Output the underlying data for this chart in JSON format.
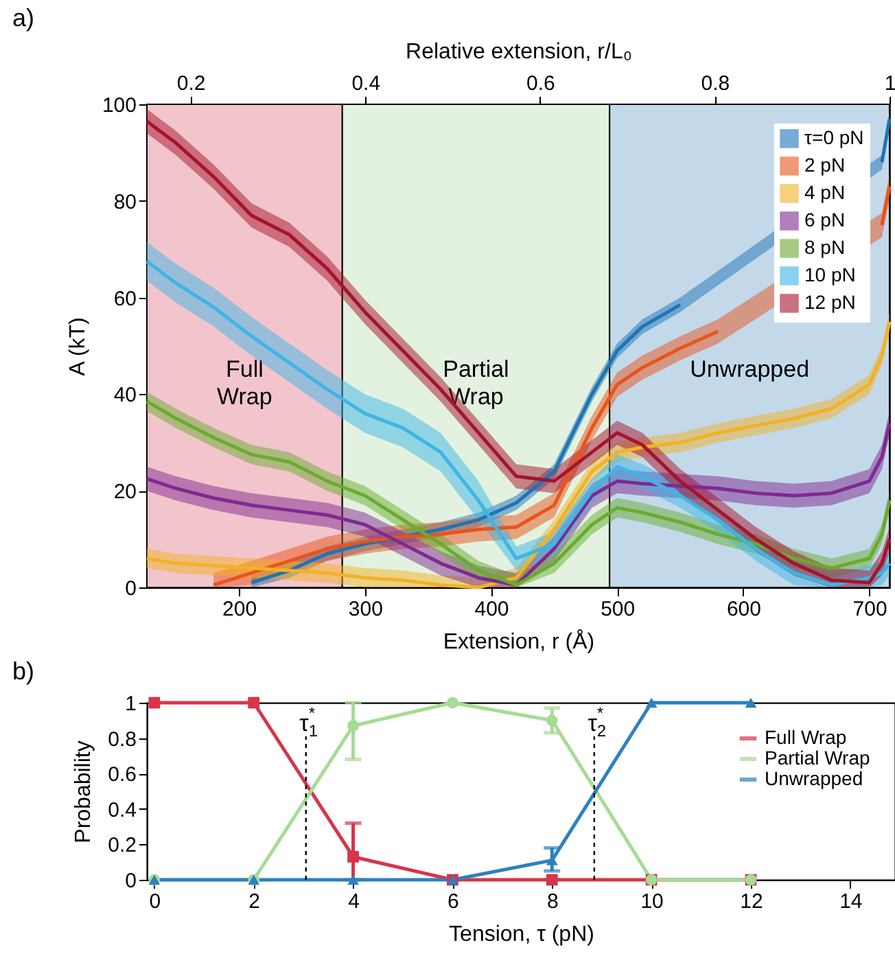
{
  "chart_data": [
    {
      "type": "line",
      "x2label": "Relative extension, r/L₀",
      "xlabel": "Extension, r (Å)",
      "ylabel": "A (kT)",
      "annotations": [
        "a)"
      ],
      "xlim": [
        127,
        716
      ],
      "xticks": [
        200,
        300,
        400,
        500,
        600,
        700
      ],
      "ylim": [
        0,
        100
      ],
      "yticks": [
        0,
        20,
        40,
        60,
        80,
        100
      ],
      "x2lim": [
        0.15,
        1
      ],
      "x2ticks": [
        0.2,
        0.4,
        0.6,
        0.8,
        1
      ],
      "legend": "top right",
      "grid": false,
      "bands": [
        {
          "axis": "x",
          "from": 127,
          "to": 282,
          "label": "Full Wrap",
          "color": "#f2c5cc"
        },
        {
          "axis": "x",
          "from": 282,
          "to": 494,
          "label": "Partial Wrap",
          "color": "#e3f2e0"
        },
        {
          "axis": "x",
          "from": 494,
          "to": 716,
          "label": "Unwrapped",
          "color": "#c3d9ea"
        }
      ],
      "x": [
        127,
        150,
        180,
        210,
        240,
        270,
        300,
        330,
        360,
        390,
        420,
        450,
        480,
        500,
        520,
        550,
        580,
        610,
        640,
        670,
        700,
        710,
        716
      ],
      "series": [
        {
          "name": "τ=0 pN",
          "color": "#1f74b6",
          "values": [
            null,
            null,
            null,
            1,
            3.5,
            7,
            9,
            10.5,
            12,
            14,
            17.5,
            24,
            40,
            49,
            54,
            58.5,
            null,
            null,
            null,
            null,
            null,
            88,
            97
          ],
          "lower": [
            null,
            null,
            null,
            0,
            2,
            5.5,
            7.5,
            9,
            10.5,
            12.5,
            16,
            22.5,
            38.5,
            47.5,
            52.5,
            57,
            null,
            null,
            null,
            null,
            null,
            86.5,
            95.5
          ],
          "upper": [
            null,
            null,
            null,
            2.5,
            5,
            8.5,
            10.5,
            12,
            13.5,
            15.5,
            19,
            25.5,
            41.5,
            50.5,
            55.5,
            60,
            null,
            null,
            null,
            null,
            null,
            89.5,
            98.5
          ]
        },
        {
          "name": "2 pN",
          "color": "#e8541c",
          "values": [
            null,
            null,
            0.5,
            3,
            5.5,
            8,
            9.5,
            10.5,
            11,
            12,
            12.5,
            17,
            33,
            42,
            45.5,
            49.5,
            53,
            null,
            null,
            null,
            null,
            75,
            83
          ],
          "lower": [
            null,
            null,
            0,
            0.5,
            3,
            5.5,
            7,
            8,
            8.5,
            9.5,
            10,
            14.5,
            30.5,
            39.5,
            43,
            47,
            50.5,
            null,
            null,
            null,
            null,
            72.5,
            80.5
          ],
          "upper": [
            null,
            null,
            3,
            5.5,
            8,
            10.5,
            12,
            13,
            13.5,
            14.5,
            15,
            19.5,
            35.5,
            44.5,
            48,
            52,
            55.5,
            null,
            null,
            null,
            null,
            77.5,
            85.5
          ]
        },
        {
          "name": "4 pN",
          "color": "#f2b226",
          "values": [
            6,
            5,
            4.5,
            4,
            3.5,
            3,
            2,
            1.5,
            0.5,
            0,
            2,
            12,
            24,
            28,
            29,
            30,
            32,
            33.5,
            35,
            37,
            42,
            48,
            55
          ],
          "lower": [
            4,
            3,
            2.5,
            2,
            1.5,
            1,
            0,
            0,
            0,
            0,
            0,
            10,
            22,
            26,
            27,
            28,
            30,
            31.5,
            33,
            35,
            40,
            46,
            53
          ],
          "upper": [
            8,
            7,
            6.5,
            6,
            5.5,
            5,
            4,
            3.5,
            2.5,
            2,
            4,
            14,
            26,
            30,
            31,
            32,
            34,
            35.5,
            37,
            39,
            44,
            50,
            57
          ]
        },
        {
          "name": "6 pN",
          "color": "#7f2a90",
          "values": [
            22.5,
            20.5,
            18.5,
            17,
            16,
            15,
            13,
            9,
            5,
            2,
            0.5,
            8,
            19,
            22,
            21.5,
            21,
            20.5,
            19.5,
            19,
            19.5,
            22,
            27,
            34
          ],
          "lower": [
            20,
            18,
            16,
            14.5,
            13.5,
            12.5,
            10.5,
            6.5,
            2.5,
            0,
            0,
            5.5,
            16.5,
            19.5,
            19,
            18.5,
            18,
            17,
            16.5,
            17,
            19.5,
            24.5,
            31.5
          ],
          "upper": [
            25,
            23,
            21,
            19.5,
            18.5,
            17.5,
            15.5,
            11.5,
            7.5,
            4.5,
            3,
            10.5,
            21.5,
            24.5,
            24,
            23.5,
            23,
            22,
            21.5,
            22,
            24.5,
            29.5,
            36.5
          ]
        },
        {
          "name": "8 pN",
          "color": "#6aab2f",
          "values": [
            38.5,
            35,
            31,
            27.5,
            26,
            22,
            19,
            14,
            9,
            3.5,
            0.5,
            5,
            13,
            16.5,
            15.5,
            13.5,
            11,
            9,
            6,
            4,
            6,
            11,
            18
          ],
          "lower": [
            36.5,
            33,
            29,
            25.5,
            24,
            20,
            17,
            12,
            7,
            1.5,
            0,
            3,
            11,
            14.5,
            13.5,
            11.5,
            9,
            7,
            4,
            2,
            4,
            9,
            16
          ],
          "upper": [
            40.5,
            37,
            33,
            29.5,
            28,
            24,
            21,
            16,
            11,
            5.5,
            2.5,
            7,
            15,
            18.5,
            17.5,
            15.5,
            13,
            11,
            8,
            6,
            8,
            13,
            20
          ]
        },
        {
          "name": "10 pN",
          "color": "#3db5e6",
          "values": [
            67.5,
            63,
            58,
            52,
            46.5,
            41,
            36,
            33,
            28,
            18,
            6,
            9,
            20,
            25,
            23,
            19,
            14,
            8,
            3,
            0.5,
            2,
            3,
            5
          ],
          "lower": [
            63.5,
            59,
            54,
            48,
            42.5,
            37,
            32,
            29,
            24,
            14,
            3.5,
            6.5,
            17.5,
            22.5,
            20.5,
            16.5,
            11.5,
            5.5,
            0.5,
            0,
            0,
            0.5,
            2.5
          ],
          "upper": [
            71.5,
            67,
            62,
            56,
            50.5,
            45,
            40,
            37,
            32,
            22,
            8.5,
            11.5,
            22.5,
            27.5,
            25.5,
            21.5,
            16.5,
            10.5,
            5.5,
            3,
            4.5,
            5.5,
            7.5
          ]
        },
        {
          "name": "12 pN",
          "color": "#a5142c",
          "values": [
            96.5,
            92,
            85,
            77,
            73,
            66,
            57,
            49,
            41,
            32,
            23,
            22,
            28,
            32,
            29.5,
            22,
            16,
            10,
            5,
            1.5,
            1,
            5,
            10
          ],
          "lower": [
            94,
            89.5,
            82.5,
            74.5,
            70.5,
            63.5,
            54.5,
            46.5,
            38.5,
            29.5,
            20.5,
            19.5,
            25.5,
            29.5,
            27,
            19.5,
            13.5,
            7.5,
            2.5,
            0,
            0,
            2.5,
            7.5
          ],
          "upper": [
            99,
            94.5,
            87.5,
            79.5,
            75.5,
            68.5,
            59.5,
            51.5,
            43.5,
            34.5,
            25.5,
            24.5,
            30.5,
            34.5,
            32,
            24.5,
            18.5,
            12.5,
            7.5,
            4,
            3.5,
            7.5,
            12.5
          ]
        }
      ]
    },
    {
      "type": "line",
      "xlabel": "Tension, τ (pN)",
      "ylabel": "Probability",
      "annotations": [
        "b)"
      ],
      "xlim": [
        -0.15,
        14.9
      ],
      "xticks": [
        0,
        2,
        4,
        6,
        8,
        10,
        12,
        14
      ],
      "ylim": [
        0,
        1
      ],
      "yticks": [
        0,
        0.2,
        0.4,
        0.6,
        0.8,
        1
      ],
      "legend": "top right",
      "grid": false,
      "ref_lines": [
        {
          "axis": "x",
          "value": 3.05,
          "label": "τ$^{*}$$_{1}$",
          "color": "#000000",
          "line_style": "dashed"
        },
        {
          "axis": "x",
          "value": 8.85,
          "label": "τ$^{*}$$_{2}$",
          "color": "#000000",
          "line_style": "dashed"
        }
      ],
      "x": [
        0,
        2,
        4,
        6,
        8,
        10,
        12
      ],
      "series": [
        {
          "name": "Full Wrap",
          "color": "#d8344a",
          "marker": "square",
          "values": [
            1,
            1,
            0.13,
            0,
            0,
            0,
            0
          ],
          "errors": [
            null,
            null,
            [
              0,
              0.32
            ],
            null,
            null,
            null,
            null
          ]
        },
        {
          "name": "Partial Wrap",
          "color": "#a5dc94",
          "marker": "circle",
          "values": [
            0,
            0,
            0.87,
            1,
            0.9,
            0,
            0
          ],
          "errors": [
            null,
            null,
            [
              0.68,
              1
            ],
            null,
            [
              0.83,
              0.97
            ],
            null,
            null
          ]
        },
        {
          "name": "Unwrapped",
          "color": "#2e80c0",
          "marker": "triangle",
          "values": [
            0,
            0,
            0,
            0,
            0.11,
            1,
            1
          ],
          "errors": [
            null,
            null,
            null,
            null,
            [
              0.05,
              0.18
            ],
            null,
            null
          ]
        }
      ]
    }
  ]
}
